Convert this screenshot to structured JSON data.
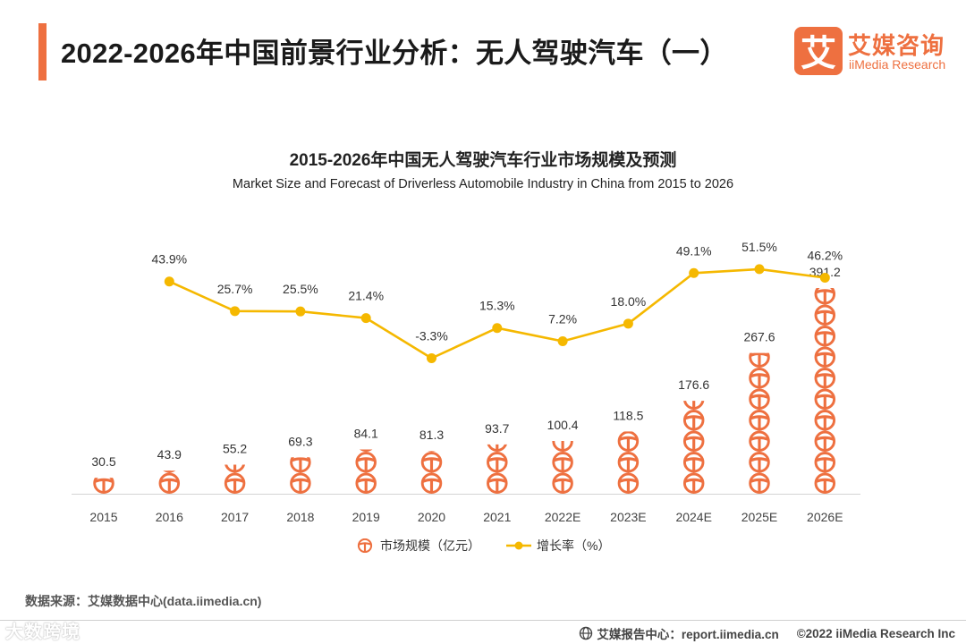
{
  "page": {
    "title": "2022-2026年中国前景行业分析：无人驾驶汽车（一）"
  },
  "logo": {
    "name_cn": "艾媒咨询",
    "name_en": "iiMedia Research",
    "mark_char": "艾"
  },
  "chart_data": {
    "type": "bar+line",
    "title": "2015-2026年中国无人驾驶汽车行业市场规模及预测",
    "subtitle": "Market Size and Forecast of Driverless Automobile Industry in China from 2015 to 2026",
    "categories": [
      "2015",
      "2016",
      "2017",
      "2018",
      "2019",
      "2020",
      "2021",
      "2022E",
      "2023E",
      "2024E",
      "2025E",
      "2026E"
    ],
    "series": [
      {
        "name": "市场规模（亿元）",
        "type": "pictograph-bar",
        "axis": "left",
        "values": [
          30.5,
          43.9,
          55.2,
          69.3,
          84.1,
          81.3,
          93.7,
          100.4,
          118.5,
          176.6,
          267.6,
          391.2
        ],
        "labels": [
          "30.5",
          "43.9",
          "55.2",
          "69.3",
          "84.1",
          "81.3",
          "93.7",
          "100.4",
          "118.5",
          "176.6",
          "267.6",
          "391.2"
        ],
        "color": "#ee7040",
        "icon": "steering-wheel-icon"
      },
      {
        "name": "增长率（%）",
        "type": "line",
        "axis": "right",
        "values": [
          null,
          43.9,
          25.7,
          25.5,
          21.4,
          -3.3,
          15.3,
          7.2,
          18.0,
          49.1,
          51.5,
          46.2
        ],
        "labels": [
          "",
          "43.9%",
          "25.7%",
          "25.5%",
          "21.4%",
          "-3.3%",
          "15.3%",
          "7.2%",
          "18.0%",
          "49.1%",
          "51.5%",
          "46.2%"
        ],
        "color": "#f5b800"
      }
    ],
    "ylim_left": [
      0,
      391.2
    ],
    "ylim_right": [
      -25,
      85
    ],
    "legend_position": "bottom-center",
    "grid": false
  },
  "source": {
    "text": "数据来源：艾媒数据中心(data.iimedia.cn)"
  },
  "footer": {
    "report_center": "艾媒报告中心：report.iimedia.cn",
    "copyright": "©2022  iiMedia Research  Inc"
  },
  "watermark": {
    "text": "大数跨境"
  },
  "colors": {
    "accent": "#ee7040",
    "line": "#f5b800"
  }
}
